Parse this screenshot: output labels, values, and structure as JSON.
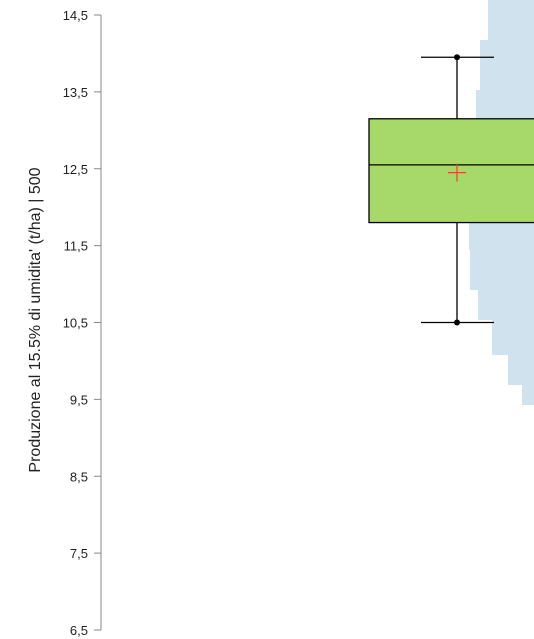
{
  "chart_data": {
    "type": "box",
    "ylabel": "Produzione al 15.5% di umidita' (t/ha) | 500",
    "ylim": [
      6.5,
      14.5
    ],
    "yticks": [
      "14,5",
      "13,5",
      "12,5",
      "11,5",
      "10,5",
      "9,5",
      "8,5",
      "7,5",
      "6,5"
    ],
    "ytick_values": [
      14.5,
      13.5,
      12.5,
      11.5,
      10.5,
      9.5,
      8.5,
      7.5,
      6.5
    ],
    "box": {
      "min": 10.5,
      "q1": 11.8,
      "median": 12.55,
      "q3": 13.15,
      "max": 13.95,
      "mean": 12.45
    },
    "colors": {
      "box_fill": "#a6d96a",
      "mean_marker": "#e8452c",
      "density_shape": "#cfe2ee",
      "axis": "#888888"
    }
  }
}
